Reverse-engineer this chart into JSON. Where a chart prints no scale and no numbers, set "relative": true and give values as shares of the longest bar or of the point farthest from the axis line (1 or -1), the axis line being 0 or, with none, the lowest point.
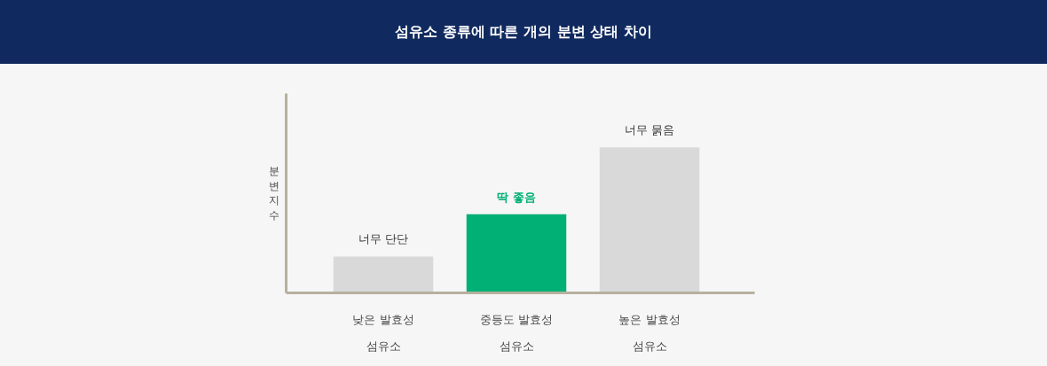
{
  "chart_data": {
    "type": "bar",
    "title": "섬유소 종류에 따른 개의 분변 상태 차이",
    "ylabel": "분변지수",
    "relative": true,
    "categories": [
      "낮은 발효성\n섬유소",
      "중등도 발효성\n섬유소",
      "높은 발효성\n섬유소"
    ],
    "values": [
      0.25,
      0.54,
      1
    ],
    "colors": [
      "#d9d9d9",
      "#00b074",
      "#d9d9d9"
    ],
    "annotations": [
      {
        "text": "너무 단단",
        "x": "낮은 발효성\n섬유소",
        "y": 0.25
      },
      {
        "text": "딱 좋음",
        "x": "중등도 발효성\n섬유소",
        "y": 0.54
      },
      {
        "text": "너무 묽음",
        "x": "높은 발효성\n섬유소",
        "y": 1
      }
    ]
  }
}
